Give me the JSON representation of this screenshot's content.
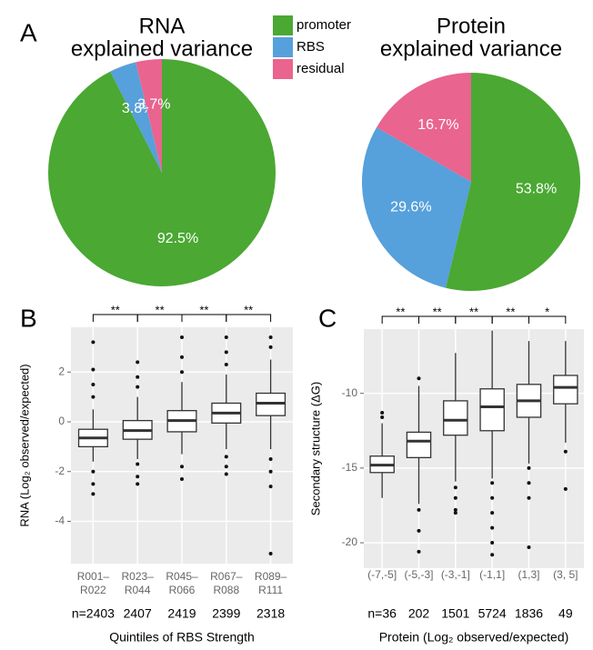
{
  "chart_data": [
    {
      "type": "pie",
      "panel": "A",
      "title": [
        "RNA",
        "explained variance"
      ],
      "categories": [
        "promoter",
        "RBS",
        "residual"
      ],
      "colors": [
        "#4aa833",
        "#56a0db",
        "#e9648e"
      ],
      "values": [
        92.5,
        3.8,
        3.7
      ],
      "value_labels": [
        "92.5%",
        "3.8%",
        "3.7%"
      ]
    },
    {
      "type": "pie",
      "title": [
        "Protein",
        "explained variance"
      ],
      "colors": [
        "#4aa833",
        "#56a0db",
        "#e9648e"
      ],
      "values": [
        53.8,
        29.6,
        16.7
      ],
      "value_labels": [
        "53.8%",
        "29.6%",
        "16.7%"
      ]
    },
    {
      "type": "box",
      "panel": "B",
      "categories": [
        [
          "R001–",
          "R022"
        ],
        [
          "R023–",
          "R044"
        ],
        [
          "R045–",
          "R066"
        ],
        [
          "R067–",
          "R088"
        ],
        [
          "R089–",
          "R111"
        ]
      ],
      "n_labels": [
        "n=2403",
        "2407",
        "2419",
        "2399",
        "2318"
      ],
      "significance": [
        "**",
        "**",
        "**",
        "**"
      ],
      "xlabel": "Quintiles of RBS Strength",
      "ylabel": "RNA (Log₂ observed/expected)",
      "ylim": [
        -5.7,
        3.8
      ],
      "yticks": [
        -4,
        -2,
        0,
        2
      ],
      "grid": true,
      "boxes": [
        {
          "low": -1.6,
          "q1": -1.0,
          "median": -0.65,
          "q3": -0.3,
          "high": 0.5,
          "outliers": [
            3.2,
            2.1,
            1.5,
            1.0,
            -2.0,
            -2.5,
            -2.9
          ]
        },
        {
          "low": -1.5,
          "q1": -0.7,
          "median": -0.35,
          "q3": 0.05,
          "high": 1.0,
          "outliers": [
            2.4,
            1.8,
            1.4,
            -1.7,
            -2.2,
            -2.5
          ]
        },
        {
          "low": -1.3,
          "q1": -0.4,
          "median": 0.05,
          "q3": 0.45,
          "high": 1.6,
          "outliers": [
            3.4,
            2.6,
            2.0,
            -1.8,
            -2.3
          ]
        },
        {
          "low": -1.1,
          "q1": -0.05,
          "median": 0.35,
          "q3": 0.75,
          "high": 1.9,
          "outliers": [
            3.4,
            2.8,
            2.3,
            -1.4,
            -1.8,
            -2.1
          ]
        },
        {
          "low": -1.1,
          "q1": 0.25,
          "median": 0.75,
          "q3": 1.15,
          "high": 2.5,
          "outliers": [
            3.4,
            3.0,
            -1.5,
            -2.0,
            -2.6,
            -5.3
          ]
        }
      ]
    },
    {
      "type": "box",
      "panel": "C",
      "categories": [
        "(-7,-5]",
        "(-5,-3]",
        "(-3,-1]",
        "(-1,1]",
        "(1,3]",
        "(3, 5]"
      ],
      "n_labels": [
        "n=36",
        "202",
        "1501",
        "5724",
        "1836",
        "49"
      ],
      "significance": [
        "**",
        "**",
        "**",
        "**",
        "*"
      ],
      "xlabel": "Protein (Log₂ observed/expected)",
      "ylabel": "Secondary structure (ΔG)",
      "ylim": [
        -21.7,
        -5.7
      ],
      "yticks": [
        -20,
        -15,
        -10
      ],
      "grid": true,
      "boxes": [
        {
          "low": -17.0,
          "q1": -15.3,
          "median": -14.8,
          "q3": -14.2,
          "high": -12.0,
          "outliers": [
            -11.3,
            -11.6
          ]
        },
        {
          "low": -17.4,
          "q1": -14.3,
          "median": -13.2,
          "q3": -12.6,
          "high": -9.5,
          "outliers": [
            -9.0,
            -17.8,
            -19.2,
            -20.6
          ]
        },
        {
          "low": -15.9,
          "q1": -12.8,
          "median": -11.8,
          "q3": -10.5,
          "high": -7.3,
          "outliers": [
            -16.3,
            -17.0,
            -17.8,
            -18.0
          ]
        },
        {
          "low": -15.7,
          "q1": -12.5,
          "median": -10.9,
          "q3": -9.7,
          "high": -5.8,
          "outliers": [
            -16.0,
            -17.0,
            -18.0,
            -19.0,
            -20.0,
            -20.8
          ]
        },
        {
          "low": -14.7,
          "q1": -11.6,
          "median": -10.5,
          "q3": -9.4,
          "high": -6.5,
          "outliers": [
            -15.0,
            -16.0,
            -17.0,
            -20.3
          ]
        },
        {
          "low": -13.3,
          "q1": -10.7,
          "median": -9.6,
          "q3": -8.8,
          "high": -6.5,
          "outliers": [
            -13.9,
            -16.4
          ]
        }
      ]
    }
  ]
}
